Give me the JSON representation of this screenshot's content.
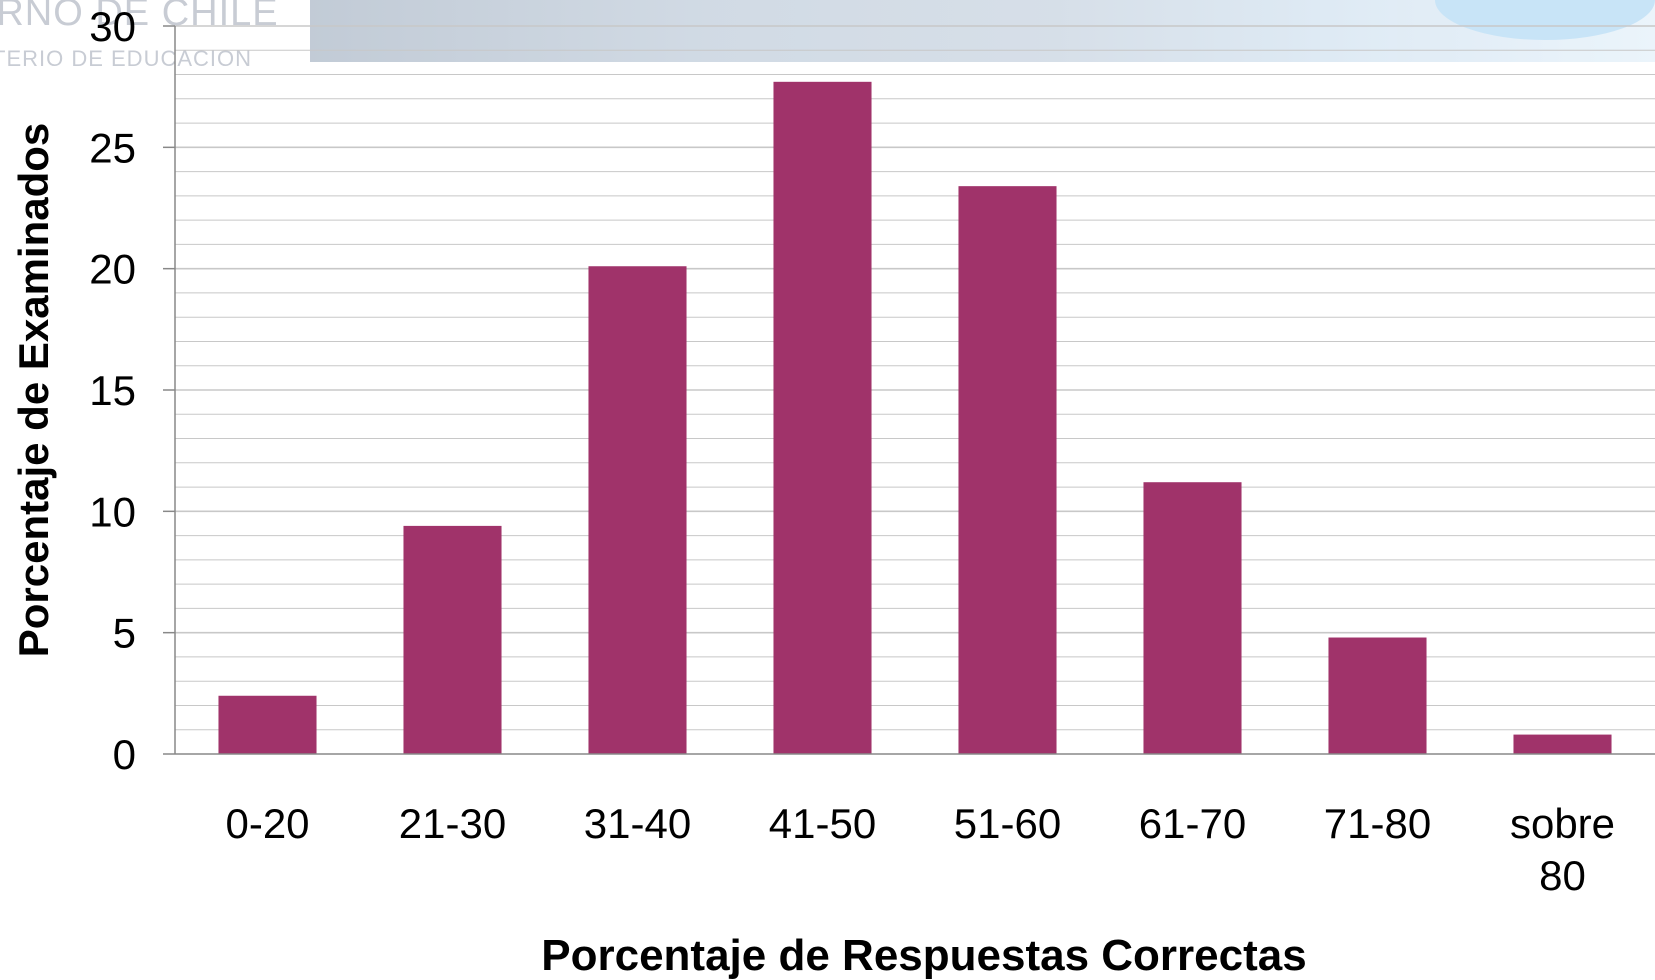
{
  "header": {
    "watermark_line1": "ERNO DE CHILE",
    "watermark_line2": "TERIO DE EDUCACION"
  },
  "chart_data": {
    "type": "bar",
    "categories": [
      "0-20",
      "21-30",
      "31-40",
      "41-50",
      "51-60",
      "61-70",
      "71-80",
      "sobre 80"
    ],
    "values": [
      2.4,
      9.4,
      20.1,
      27.7,
      23.4,
      11.2,
      4.8,
      0.8
    ],
    "xlabel": "Porcentaje de Respuestas Correctas",
    "ylabel": "Porcentaje de Examinados",
    "ylim": [
      0,
      30
    ],
    "yticks": [
      0,
      5,
      10,
      15,
      20,
      25,
      30
    ],
    "grid": true,
    "minor_gridlines_per_major": 5,
    "bar_color": "#a0336a",
    "grid_color": "#c8c8c8",
    "axis_color": "#888888",
    "legend": "none"
  }
}
